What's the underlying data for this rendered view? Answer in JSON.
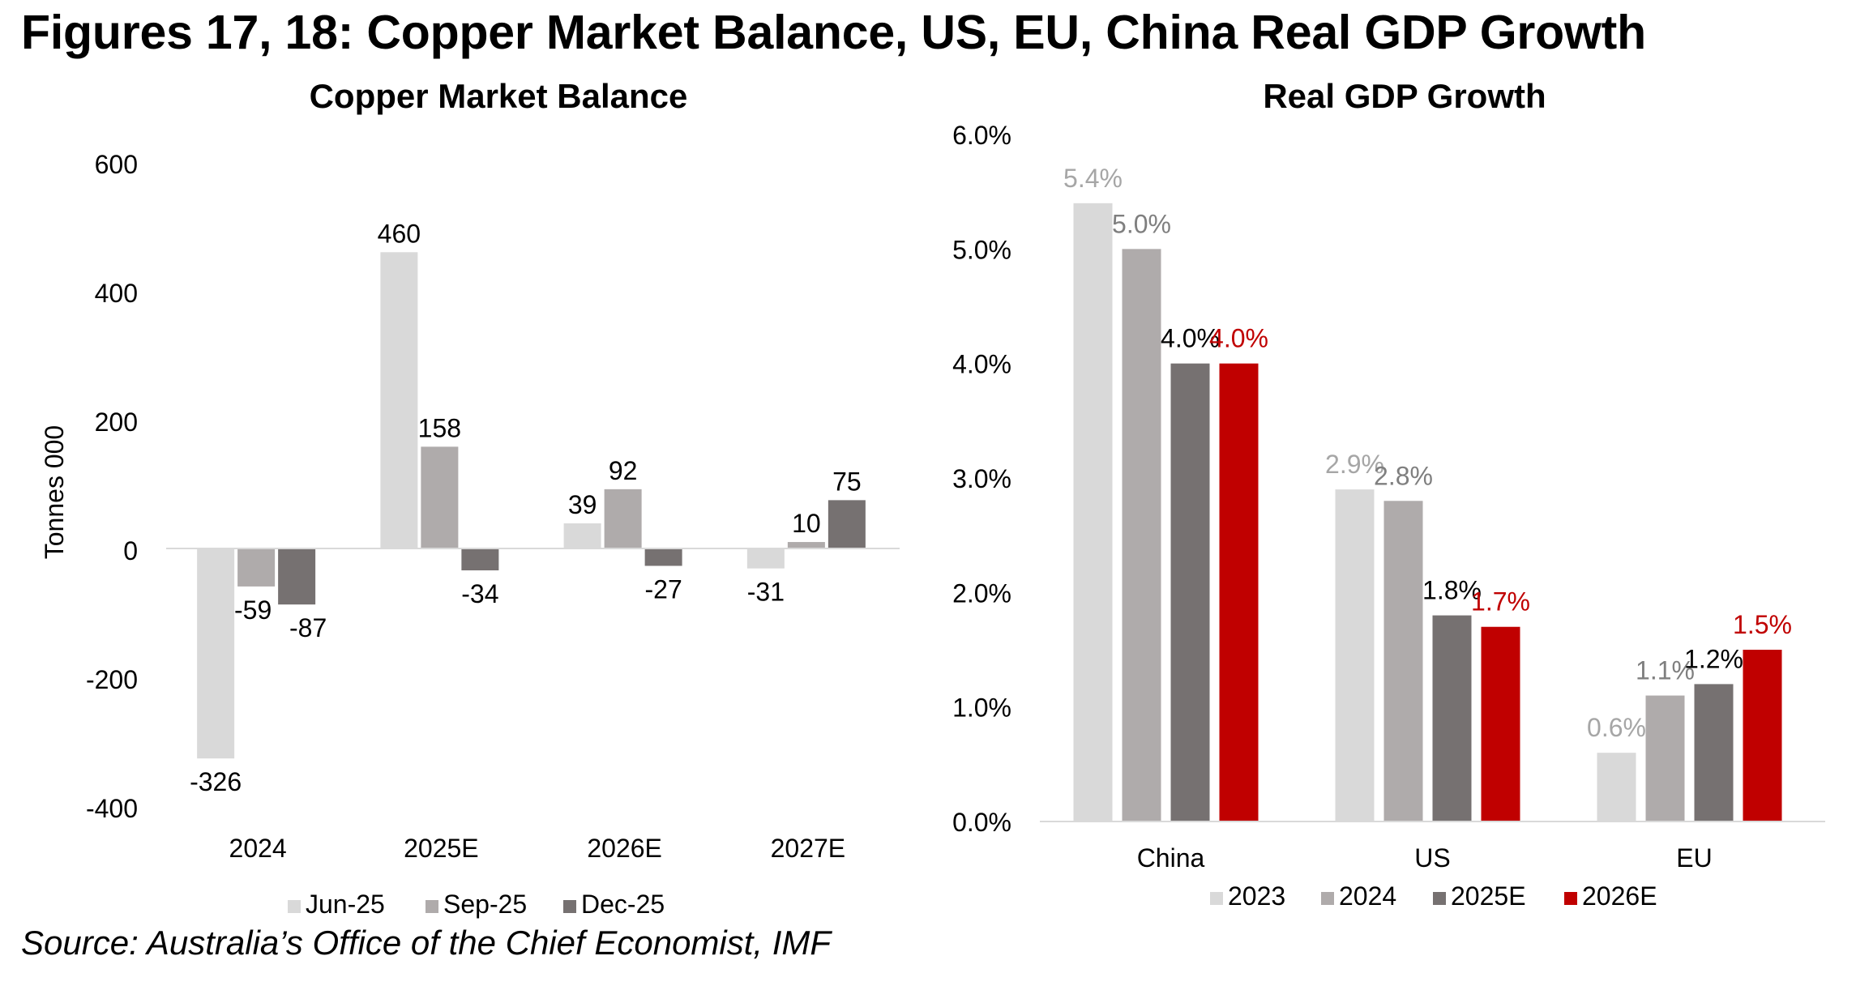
{
  "figure_title": "Figures 17, 18: Copper Market Balance, US, EU, China Real GDP Growth",
  "source": "Source: Australia’s Office of the Chief Economist, IMF",
  "colors": {
    "light_gray": "#d9d9d9",
    "mid_gray": "#afabab",
    "dark_gray": "#767171",
    "red": "#c00000",
    "axis": "#d9d9d9"
  },
  "chart_data": [
    {
      "type": "bar",
      "title": "Copper Market Balance",
      "ylabel": "Tonnes 000",
      "xlabel": "",
      "ylim": [
        -400,
        600
      ],
      "yticks": [
        600,
        400,
        200,
        0,
        -200,
        -400
      ],
      "ytick_labels": [
        "600",
        "400",
        "200",
        "0",
        "-200",
        "-400"
      ],
      "categories": [
        "2024",
        "2025E",
        "2026E",
        "2027E"
      ],
      "series": [
        {
          "name": "Jun-25",
          "color": "#d9d9d9",
          "values": [
            -326,
            460,
            39,
            -31
          ],
          "labels": [
            "-326",
            "460",
            "39",
            "-31"
          ]
        },
        {
          "name": "Sep-25",
          "color": "#afabab",
          "values": [
            -59,
            158,
            92,
            10
          ],
          "labels": [
            "-59",
            "158",
            "92",
            "10"
          ]
        },
        {
          "name": "Dec-25",
          "color": "#767171",
          "values": [
            -87,
            -34,
            -27,
            75
          ],
          "labels": [
            "-87",
            "-34",
            "-27",
            "75"
          ]
        }
      ],
      "legend": "bottom"
    },
    {
      "type": "bar",
      "title": "Real GDP Growth",
      "ylabel": "",
      "xlabel": "",
      "ylim": [
        0,
        6
      ],
      "yticks": [
        6,
        5,
        4,
        3,
        2,
        1,
        0
      ],
      "ytick_labels": [
        "6.0%",
        "5.0%",
        "4.0%",
        "3.0%",
        "2.0%",
        "1.0%",
        "0.0%"
      ],
      "categories": [
        "China",
        "US",
        "EU"
      ],
      "series": [
        {
          "name": "2023",
          "color": "#d9d9d9",
          "label_color": "#a6a6a6",
          "values": [
            5.4,
            2.9,
            0.6
          ],
          "labels": [
            "5.4%",
            "2.9%",
            "0.6%"
          ]
        },
        {
          "name": "2024",
          "color": "#afabab",
          "label_color": "#7f7f7f",
          "values": [
            5.0,
            2.8,
            1.1
          ],
          "labels": [
            "5.0%",
            "2.8%",
            "1.1%"
          ]
        },
        {
          "name": "2025E",
          "color": "#767171",
          "label_color": "#000000",
          "values": [
            4.0,
            1.8,
            1.2
          ],
          "labels": [
            "4.0%",
            "1.8%",
            "1.2%"
          ]
        },
        {
          "name": "2026E",
          "color": "#c00000",
          "label_color": "#c00000",
          "values": [
            4.0,
            1.7,
            1.5
          ],
          "labels": [
            "4.0%",
            "1.7%",
            "1.5%"
          ]
        }
      ],
      "legend": "bottom"
    }
  ]
}
